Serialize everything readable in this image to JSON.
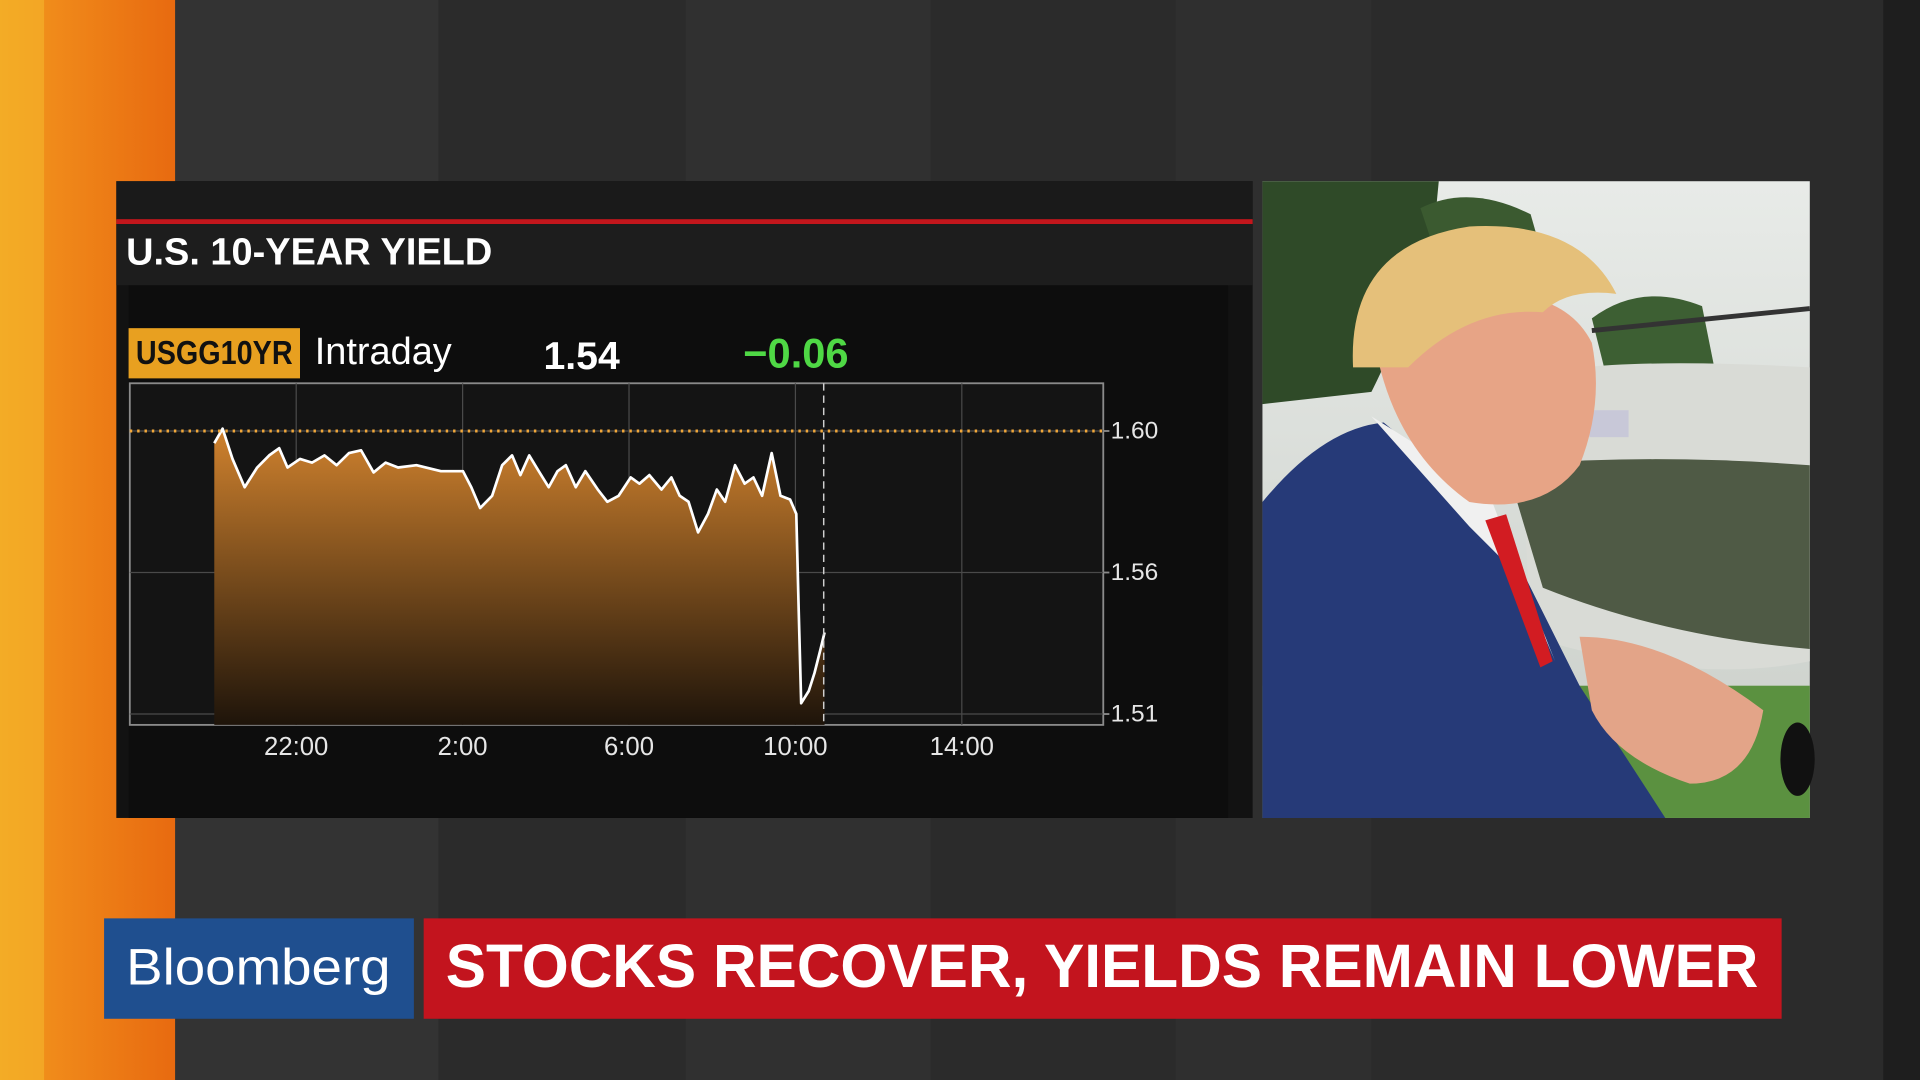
{
  "chart_data": {
    "type": "area",
    "title": "U.S. 10-YEAR YIELD",
    "ticker": "USGG10YR",
    "period": "Intraday",
    "last": "1.54",
    "change": "−0.06",
    "color": "#ffffff",
    "fill_color": "#d0822e",
    "reference_color": "#f2a83a",
    "grid": true,
    "x": [
      20.03,
      20.23,
      20.47,
      20.76,
      21.06,
      21.35,
      21.59,
      21.79,
      22.09,
      22.38,
      22.68,
      22.97,
      23.27,
      23.56,
      23.86,
      24.15,
      24.45,
      24.89,
      25.48,
      26.01,
      26.21,
      26.42,
      26.71,
      26.95,
      27.19,
      27.39,
      27.6,
      27.83,
      28.07,
      28.28,
      28.48,
      28.72,
      28.95,
      29.25,
      29.48,
      29.75,
      30.04,
      30.25,
      30.49,
      30.78,
      31.02,
      31.22,
      31.43,
      31.66,
      31.9,
      32.11,
      32.31,
      32.55,
      32.78,
      32.99,
      33.2,
      33.43,
      33.64,
      33.87,
      34.02,
      34.08,
      34.14,
      34.32,
      34.46,
      34.61,
      34.7
    ],
    "values": [
      1.5963,
      1.6007,
      1.5915,
      1.5829,
      1.5889,
      1.5926,
      1.5948,
      1.5889,
      1.5915,
      1.5904,
      1.5926,
      1.5896,
      1.5933,
      1.5941,
      1.5874,
      1.5904,
      1.5889,
      1.5896,
      1.5878,
      1.5878,
      1.5829,
      1.5766,
      1.5803,
      1.5896,
      1.5926,
      1.5866,
      1.5926,
      1.5878,
      1.5829,
      1.5878,
      1.5896,
      1.5829,
      1.5878,
      1.5822,
      1.5785,
      1.5803,
      1.5859,
      1.584,
      1.5866,
      1.5822,
      1.5859,
      1.5803,
      1.5785,
      1.5692,
      1.5748,
      1.5822,
      1.5785,
      1.5896,
      1.584,
      1.5859,
      1.5803,
      1.5933,
      1.5803,
      1.5792,
      1.5748,
      1.5451,
      1.5173,
      1.521,
      1.5265,
      1.534,
      1.5388
    ],
    "reference_line": 1.6,
    "current_time_x": 34.68,
    "xlim": [
      18.0,
      41.4
    ],
    "xticks": [
      {
        "value": 22,
        "label": "22:00"
      },
      {
        "value": 26,
        "label": "2:00"
      },
      {
        "value": 30,
        "label": "6:00"
      },
      {
        "value": 34,
        "label": "10:00"
      },
      {
        "value": 38,
        "label": "14:00"
      }
    ],
    "ylim": [
      1.5107,
      1.6145
    ],
    "yticks": [
      {
        "value": 1.6,
        "label": "1.60"
      },
      {
        "value": 1.557,
        "label": "1.56"
      },
      {
        "value": 1.514,
        "label": "1.51"
      }
    ]
  },
  "banner": {
    "logo": "Bloomberg",
    "headline": "STOCKS RECOVER, YIELDS REMAIN LOWER"
  }
}
